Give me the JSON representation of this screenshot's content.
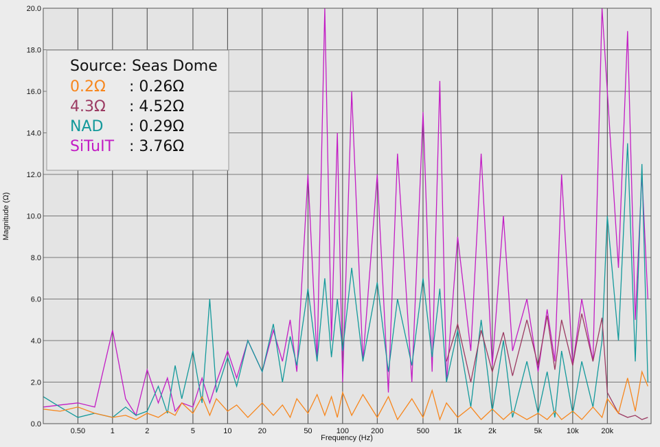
{
  "chart_data": {
    "type": "line",
    "xlabel": "Frequency (Hz)",
    "ylabel": "Magnitude (Ω)",
    "legend_title": "Source: Seas Dome",
    "xscale": "log",
    "grid": true,
    "xlim": [
      0.25,
      48000
    ],
    "ylim": [
      0,
      20
    ],
    "xticks": [
      {
        "value": 0.5,
        "label": "0.50"
      },
      1,
      2,
      5,
      10,
      20,
      50,
      100,
      200,
      500,
      {
        "value": 1000,
        "label": "1k"
      },
      {
        "value": 2000,
        "label": "2k"
      },
      {
        "value": 5000,
        "label": "5k"
      },
      {
        "value": 10000,
        "label": "10k"
      },
      {
        "value": 20000,
        "label": "20k"
      }
    ],
    "yticks": [
      {
        "value": 0,
        "label": "0.0"
      },
      {
        "value": 2,
        "label": "2.0"
      },
      {
        "value": 4,
        "label": "4.0"
      },
      {
        "value": 6,
        "label": "6.0"
      },
      {
        "value": 8,
        "label": "8.0"
      },
      {
        "value": 10,
        "label": "10.0"
      },
      {
        "value": 12,
        "label": "12.0"
      },
      {
        "value": 14,
        "label": "14.0"
      },
      {
        "value": 16,
        "label": "16.0"
      },
      {
        "value": 18,
        "label": "18.0"
      },
      {
        "value": 20,
        "label": "20.0"
      }
    ],
    "x": [
      0.25,
      0.35,
      0.5,
      0.7,
      1,
      1.3,
      1.6,
      2,
      2.5,
      3,
      3.5,
      4,
      5,
      6,
      7,
      8,
      10,
      12,
      15,
      20,
      25,
      30,
      35,
      40,
      50,
      60,
      70,
      80,
      90,
      100,
      120,
      150,
      200,
      250,
      300,
      400,
      500,
      600,
      700,
      800,
      1000,
      1300,
      1600,
      2000,
      2500,
      3000,
      4000,
      5000,
      6000,
      7000,
      8000,
      10000,
      12000,
      15000,
      18000,
      20000,
      25000,
      30000,
      35000,
      40000,
      45000
    ],
    "series": [
      {
        "name": "0.2Ω",
        "note": ": 0.26Ω",
        "color": "#f7861c",
        "values": [
          0.7,
          0.6,
          0.8,
          0.5,
          0.3,
          0.4,
          0.2,
          0.5,
          0.3,
          0.6,
          0.4,
          1.0,
          0.5,
          1.3,
          0.4,
          1.2,
          0.6,
          0.9,
          0.3,
          1.0,
          0.4,
          0.9,
          0.3,
          1.2,
          0.5,
          1.4,
          0.4,
          1.3,
          0.3,
          1.5,
          0.4,
          1.4,
          0.3,
          1.3,
          0.2,
          1.2,
          0.3,
          1.6,
          0.2,
          1.0,
          0.3,
          0.8,
          0.2,
          0.7,
          0.2,
          0.6,
          0.2,
          0.5,
          0.2,
          0.6,
          0.2,
          0.6,
          0.2,
          0.8,
          0.3,
          1.2,
          0.5,
          2.2,
          0.6,
          2.5,
          1.8
        ]
      },
      {
        "name": "4.3Ω",
        "note": ": 4.52Ω",
        "color": "#9b3a62",
        "values": [
          null,
          null,
          null,
          null,
          null,
          null,
          null,
          null,
          null,
          null,
          null,
          null,
          null,
          null,
          null,
          null,
          null,
          null,
          null,
          null,
          null,
          null,
          null,
          null,
          null,
          null,
          null,
          null,
          null,
          null,
          null,
          null,
          null,
          null,
          null,
          null,
          null,
          null,
          null,
          3.0,
          4.8,
          2.0,
          4.5,
          2.5,
          4.4,
          2.3,
          5.0,
          2.8,
          5.2,
          2.6,
          5.0,
          2.8,
          5.3,
          3.0,
          5.1,
          1.5,
          0.5,
          0.3,
          0.4,
          0.2,
          0.3
        ]
      },
      {
        "name": "NAD",
        "note": ": 0.29Ω",
        "color": "#13999b",
        "values": [
          1.3,
          0.8,
          0.3,
          0.5,
          0.3,
          0.8,
          0.4,
          0.6,
          1.8,
          0.5,
          2.8,
          1.2,
          3.5,
          1.0,
          6.0,
          1.5,
          3.2,
          1.8,
          4.0,
          2.5,
          4.8,
          2.0,
          4.2,
          2.8,
          6.5,
          3.0,
          7.0,
          3.2,
          6.0,
          3.5,
          7.5,
          3.0,
          6.8,
          2.5,
          6.0,
          2.8,
          7.0,
          3.2,
          6.5,
          2.0,
          4.5,
          0.8,
          5.0,
          0.6,
          4.0,
          0.3,
          3.0,
          0.5,
          2.5,
          0.3,
          3.5,
          0.5,
          3.0,
          0.8,
          4.0,
          10.0,
          4.0,
          13.5,
          3.0,
          12.5,
          2.0
        ]
      },
      {
        "name": "SiTuIT",
        "note": ": 3.76Ω",
        "color": "#c21cc4",
        "values": [
          0.8,
          0.9,
          1.0,
          0.8,
          4.5,
          1.2,
          0.4,
          2.6,
          1.0,
          2.2,
          0.6,
          1.0,
          0.8,
          2.2,
          1.0,
          2.0,
          3.5,
          2.2,
          4.0,
          2.5,
          4.5,
          3.0,
          5.0,
          2.5,
          12.0,
          3.0,
          20.0,
          4.0,
          14.0,
          2.0,
          16.0,
          3.0,
          12.0,
          1.5,
          13.0,
          2.0,
          15.0,
          2.5,
          16.5,
          2.0,
          9.0,
          3.5,
          13.0,
          2.8,
          10.0,
          3.5,
          6.0,
          2.5,
          5.5,
          3.0,
          12.0,
          2.8,
          6.0,
          3.0,
          20.0,
          16.0,
          7.5,
          18.9,
          5.0,
          12.0,
          6.0
        ]
      }
    ]
  }
}
